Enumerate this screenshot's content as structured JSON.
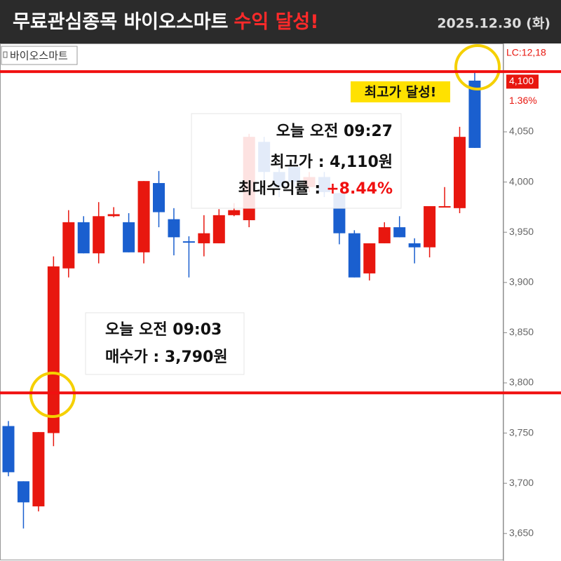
{
  "header": {
    "title": "무료관심종목 바이오스마트",
    "highlight": "수익 달성!",
    "date": "2025.12.30 (화)"
  },
  "chart_data": {
    "type": "candlestick",
    "name": "바이오스마트",
    "up_color": "#e8170f",
    "down_color": "#1a5fcf",
    "open": [
      3757,
      3702,
      3677,
      3750,
      3914,
      3960,
      3929,
      3966,
      3960,
      3930,
      3999,
      3963,
      3941,
      3939,
      3939,
      3967,
      3962,
      4040,
      4010,
      4015,
      3995,
      4005,
      3989,
      3949,
      3909,
      3939,
      3955,
      3939,
      3935,
      3975,
      3974,
      4101
    ],
    "high": [
      3762,
      3702,
      3751,
      3926,
      3972,
      3966,
      3980,
      3975,
      3969,
      4001,
      4011,
      3974,
      3946,
      3967,
      3973,
      3979,
      4048,
      4045,
      4015,
      4020,
      4010,
      4010,
      3989,
      3952,
      3939,
      3960,
      3966,
      3944,
      3976,
      3995,
      4055,
      4110
    ],
    "low": [
      3707,
      3655,
      3672,
      3737,
      3905,
      3929,
      3919,
      3965,
      3930,
      3919,
      3955,
      3927,
      3905,
      3926,
      3939,
      3966,
      3955,
      4000,
      3985,
      3995,
      3990,
      3985,
      3938,
      3905,
      3902,
      3939,
      3945,
      3919,
      3925,
      3975,
      3969,
      4034
    ],
    "close": [
      3711,
      3681,
      3751,
      3916,
      3960,
      3929,
      3966,
      3968,
      3930,
      4001,
      3970,
      3945,
      3940,
      3949,
      3967,
      3972,
      4045,
      4010,
      3995,
      4000,
      4005,
      3990,
      3949,
      3905,
      3939,
      3955,
      3945,
      3935,
      3976,
      3976,
      4045,
      4034
    ],
    "ylim": [
      3624,
      4138
    ],
    "yticks": [
      {
        "value": 3650,
        "label": "3,650"
      },
      {
        "value": 3700,
        "label": "3,700"
      },
      {
        "value": 3750,
        "label": "3,750"
      },
      {
        "value": 3800,
        "label": "3,800"
      },
      {
        "value": 3850,
        "label": "3,850"
      },
      {
        "value": 3900,
        "label": "3,900"
      },
      {
        "value": 3950,
        "label": "3,950"
      },
      {
        "value": 4000,
        "label": "4,000"
      },
      {
        "value": 4050,
        "label": "4,050"
      }
    ],
    "reference_lines": [
      {
        "value": 3790,
        "color": "#f01010"
      },
      {
        "value": 4110,
        "color": "#f01010"
      }
    ],
    "price_marker": {
      "value": 4100,
      "label": "4,100"
    },
    "change_label": "1.36%",
    "lc_label": "LC:12,18",
    "peak_label": "최고가 달성!",
    "annotation_high": {
      "time": "오늘 오전 09:27",
      "price": "최고가 : 4,110원",
      "return_label": "최대수익률 :",
      "return": "+8.44%"
    },
    "annotation_buy": {
      "time": "오늘 오전 09:03",
      "price": "매수가 : 3,790원"
    }
  }
}
